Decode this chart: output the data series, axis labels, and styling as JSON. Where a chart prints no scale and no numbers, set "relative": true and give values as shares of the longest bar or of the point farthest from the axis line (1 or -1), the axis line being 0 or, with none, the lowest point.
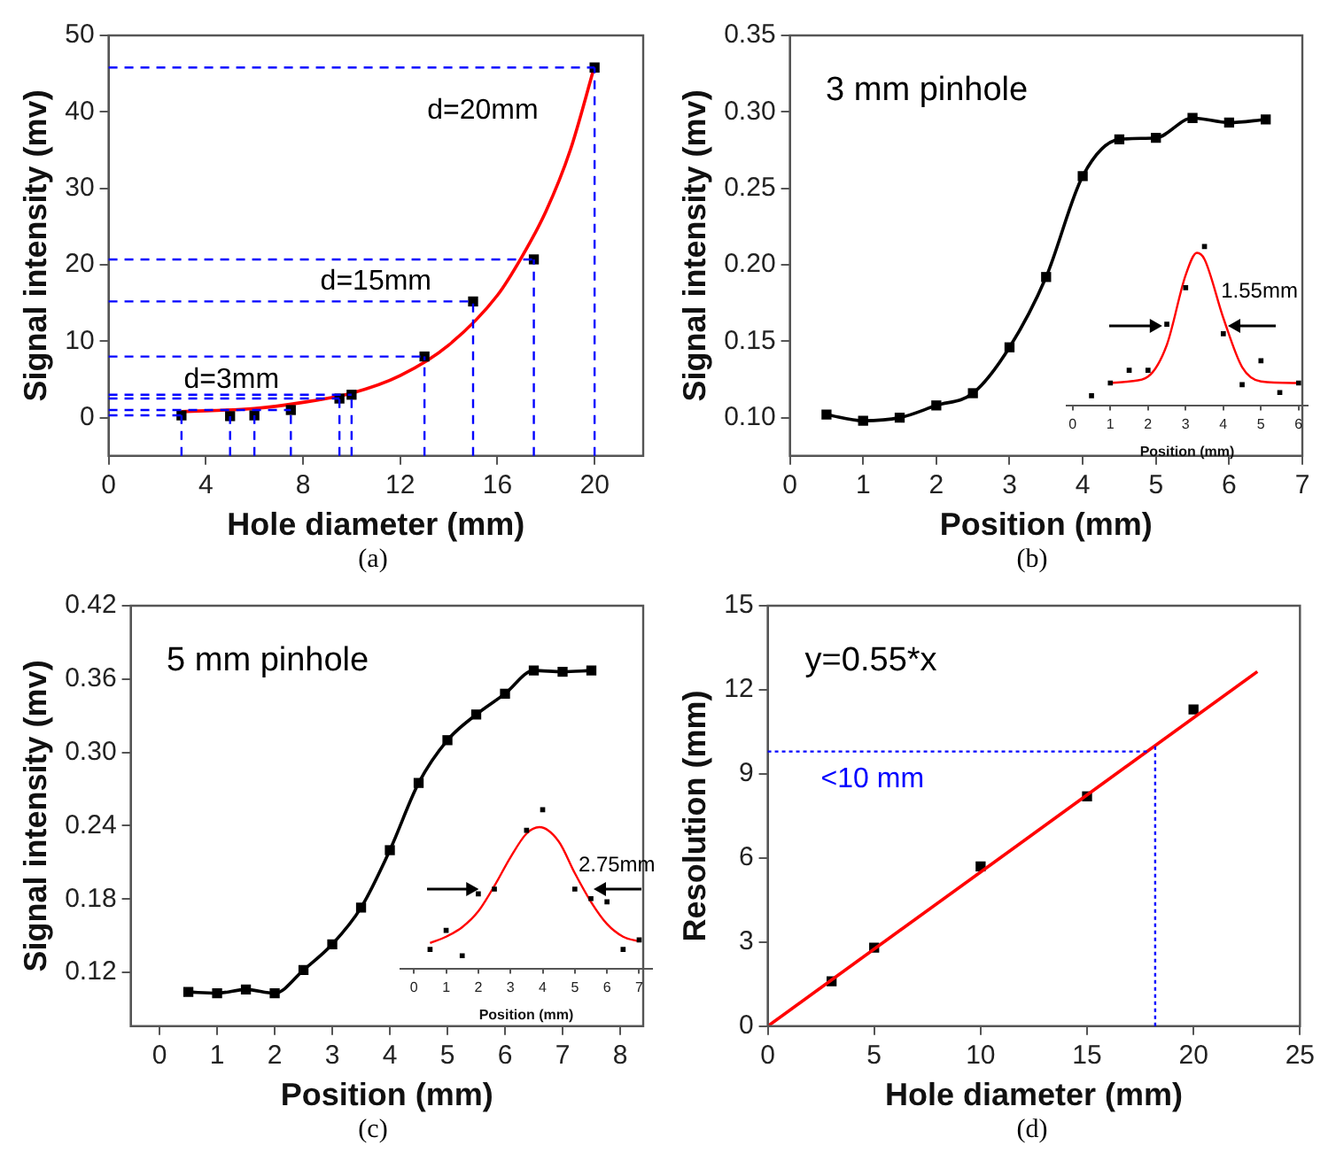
{
  "chart_data": [
    {
      "type": "scatter",
      "subtitle": "(a)",
      "xlabel": "Hole diameter (mm)",
      "ylabel": "Signal intensity (mv)",
      "xlim": [
        0,
        22
      ],
      "xticks": [
        0,
        4,
        8,
        12,
        16,
        20
      ],
      "ylim": [
        -5,
        50
      ],
      "yticks": [
        0,
        10,
        20,
        30,
        40,
        50
      ],
      "series": [
        {
          "marker": "square",
          "color": "#000000",
          "x": [
            3,
            5,
            6,
            7.5,
            9.5,
            10,
            13,
            15,
            17.5,
            20
          ],
          "values": [
            0.3,
            0.2,
            0.3,
            1,
            2.5,
            3,
            8,
            15.2,
            20.7,
            45.8
          ]
        },
        {
          "type": "line",
          "marker": "none",
          "color": "#ff0000",
          "x": [
            3,
            6,
            8,
            10,
            12,
            14,
            16,
            17,
            18,
            19,
            20
          ],
          "values": [
            0.8,
            1.2,
            2,
            3.2,
            5.5,
            9.5,
            16,
            21,
            27,
            35,
            46
          ]
        }
      ],
      "ref_lines": [
        {
          "axis": "x",
          "value": 3,
          "color": "#0000ff",
          "line_style": "dashed"
        },
        {
          "axis": "x",
          "value": 5,
          "color": "#0000ff",
          "line_style": "dashed"
        },
        {
          "axis": "x",
          "value": 6,
          "color": "#0000ff",
          "line_style": "dashed"
        },
        {
          "axis": "x",
          "value": 7.5,
          "color": "#0000ff",
          "line_style": "dashed"
        },
        {
          "axis": "x",
          "value": 9.5,
          "color": "#0000ff",
          "line_style": "dashed"
        },
        {
          "axis": "x",
          "value": 10,
          "color": "#0000ff",
          "line_style": "dashed"
        },
        {
          "axis": "x",
          "value": 13,
          "color": "#0000ff",
          "line_style": "dashed"
        },
        {
          "axis": "x",
          "value": 15,
          "color": "#0000ff",
          "line_style": "dashed"
        },
        {
          "axis": "x",
          "value": 17.5,
          "color": "#0000ff",
          "line_style": "dashed"
        },
        {
          "axis": "x",
          "value": 20,
          "color": "#0000ff",
          "line_style": "dashed"
        },
        {
          "axis": "y",
          "value": 0.3,
          "color": "#0000ff",
          "line_style": "dashed"
        },
        {
          "axis": "y",
          "value": 1,
          "color": "#0000ff",
          "line_style": "dashed"
        },
        {
          "axis": "y",
          "value": 2.5,
          "color": "#0000ff",
          "line_style": "dashed"
        },
        {
          "axis": "y",
          "value": 3,
          "color": "#0000ff",
          "line_style": "dashed"
        },
        {
          "axis": "y",
          "value": 8,
          "color": "#0000ff",
          "line_style": "dashed"
        },
        {
          "axis": "y",
          "value": 15.2,
          "color": "#0000ff",
          "line_style": "dashed"
        },
        {
          "axis": "y",
          "value": 20.7,
          "color": "#0000ff",
          "line_style": "dashed"
        },
        {
          "axis": "y",
          "value": 45.8,
          "color": "#0000ff",
          "line_style": "dashed"
        }
      ],
      "annotations": [
        "d=3mm",
        "d=15mm",
        "d=20mm"
      ]
    },
    {
      "type": "line",
      "title": "3 mm pinhole",
      "subtitle": "(b)",
      "xlabel": "Position (mm)",
      "ylabel": "Signal intensity (mv)",
      "xlim": [
        0,
        7
      ],
      "xticks": [
        0,
        1,
        2,
        3,
        4,
        5,
        6,
        7
      ],
      "ylim": [
        0.075,
        0.35
      ],
      "yticks": [
        {
          "value": 0.1,
          "label": "0.10"
        },
        0.15,
        {
          "value": 0.2,
          "label": "0.20"
        },
        0.25,
        {
          "value": 0.3,
          "label": "0.30"
        },
        0.35
      ],
      "series": [
        {
          "marker": "square",
          "color": "#000000",
          "x": [
            0.5,
            1,
            1.5,
            2,
            2.5,
            3,
            3.5,
            4,
            4.5,
            5,
            5.5,
            6,
            6.5
          ],
          "values": [
            0.102,
            0.098,
            0.1,
            0.108,
            0.116,
            0.146,
            0.192,
            0.258,
            0.282,
            0.283,
            0.296,
            0.293,
            0.295
          ]
        }
      ]
    },
    {
      "type": "scatter",
      "relative": true,
      "xlabel": "Position (mm)",
      "tick_labels": "x",
      "xlim": [
        -0.16,
        6.24
      ],
      "xticks": [
        0,
        1,
        2,
        3,
        4,
        5,
        6
      ],
      "series": [
        {
          "marker": "square",
          "color": "#000000",
          "x": [
            0.5,
            1,
            1.5,
            2,
            2.5,
            3,
            3.5,
            4,
            4.5,
            5,
            5.5,
            6
          ],
          "values": [
            0.06,
            0.14,
            0.22,
            0.22,
            0.51,
            0.74,
            1,
            0.45,
            0.13,
            0.28,
            0.08,
            0.14
          ]
        },
        {
          "type": "line",
          "marker": "none",
          "color": "#ff0000",
          "x": [
            1,
            1.5,
            2,
            2.5,
            3,
            3.3,
            3.5,
            4,
            4.5,
            5,
            6
          ],
          "values": [
            0.14,
            0.15,
            0.18,
            0.38,
            0.82,
            0.96,
            0.92,
            0.55,
            0.24,
            0.15,
            0.14
          ]
        }
      ],
      "annotations": [
        "1.55mm"
      ]
    },
    {
      "type": "line",
      "title": "5 mm pinhole",
      "subtitle": "(c)",
      "xlabel": "Position (mm)",
      "ylabel": "Signal intensity (mv)",
      "xlim": [
        -0.5,
        8.4
      ],
      "xticks": [
        0,
        1,
        2,
        3,
        4,
        5,
        6,
        7,
        8
      ],
      "ylim": [
        0.076,
        0.42
      ],
      "yticks": [
        0.12,
        0.18,
        0.24,
        {
          "value": 0.3,
          "label": "0.30"
        },
        0.36,
        0.42
      ],
      "series": [
        {
          "marker": "square",
          "color": "#000000",
          "x": [
            0.5,
            1,
            1.5,
            2,
            2.5,
            3,
            3.5,
            4,
            4.5,
            5,
            5.5,
            6,
            6.5,
            7,
            7.5
          ],
          "values": [
            0.104,
            0.103,
            0.106,
            0.103,
            0.122,
            0.143,
            0.173,
            0.22,
            0.275,
            0.31,
            0.331,
            0.348,
            0.367,
            0.366,
            0.367
          ]
        }
      ]
    },
    {
      "type": "scatter",
      "relative": true,
      "xlabel": "Position (mm)",
      "tick_labels": "x",
      "xlim": [
        -0.42,
        7.4
      ],
      "xticks": [
        0,
        1,
        2,
        3,
        4,
        5,
        6,
        7
      ],
      "series": [
        {
          "marker": "square",
          "color": "#000000",
          "x": [
            0.5,
            1,
            1.5,
            2,
            2.5,
            3.5,
            4,
            5,
            5.5,
            6,
            6.5,
            7
          ],
          "values": [
            0.12,
            0.24,
            0.08,
            0.47,
            0.5,
            0.87,
            1,
            0.5,
            0.44,
            0.42,
            0.12,
            0.18
          ]
        },
        {
          "type": "line",
          "marker": "none",
          "color": "#ff0000",
          "x": [
            0.5,
            1,
            1.5,
            2,
            2.5,
            3,
            3.5,
            3.9,
            4.5,
            5,
            5.5,
            6,
            6.5,
            7
          ],
          "values": [
            0.16,
            0.2,
            0.26,
            0.36,
            0.52,
            0.7,
            0.85,
            0.89,
            0.8,
            0.6,
            0.42,
            0.28,
            0.2,
            0.17
          ]
        }
      ],
      "annotations": [
        "2.75mm"
      ]
    },
    {
      "type": "scatter",
      "title": "y=0.55*x",
      "subtitle": "(d)",
      "xlabel": "Hole diameter (mm)",
      "ylabel": "Resolution (mm)",
      "xlim": [
        0,
        25
      ],
      "xticks": [
        0,
        5,
        10,
        15,
        20,
        25
      ],
      "ylim": [
        0,
        15
      ],
      "yticks": [
        0,
        3,
        6,
        9,
        12,
        15
      ],
      "series": [
        {
          "type": "line",
          "marker": "none",
          "color": "#ff0000",
          "x": [
            0,
            23
          ],
          "values": [
            0,
            12.65
          ]
        },
        {
          "marker": "square",
          "color": "#000000",
          "x": [
            3,
            5,
            10,
            15,
            20
          ],
          "values": [
            1.6,
            2.8,
            5.7,
            8.2,
            11.3
          ]
        }
      ],
      "ref_lines": [
        {
          "axis": "y",
          "value": 9.8,
          "label": "<10 mm",
          "color": "#0000ff",
          "line_style": "dotted"
        },
        {
          "axis": "x",
          "value": 18.2,
          "color": "#0000ff",
          "line_style": "dotted"
        }
      ]
    }
  ]
}
